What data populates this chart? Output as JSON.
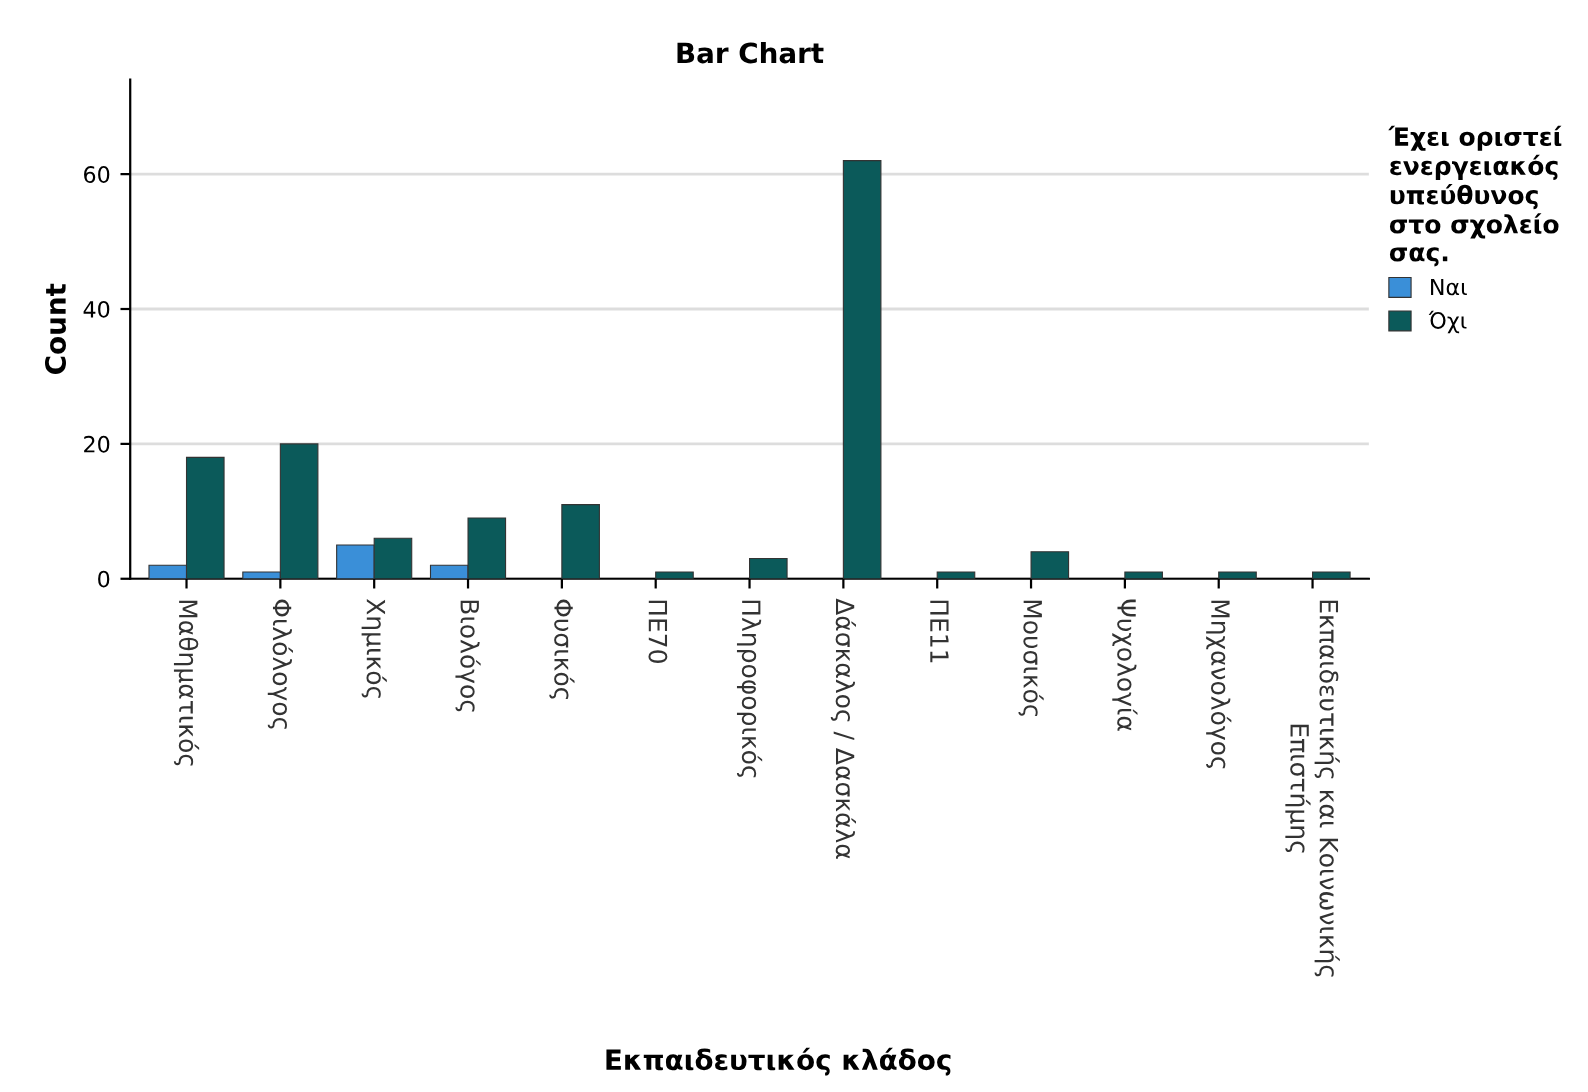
{
  "chart_data": {
    "type": "bar",
    "title": "Bar Chart",
    "xlabel": "Εκπαιδευτικός κλάδος",
    "ylabel": "Count",
    "legend_title": "Έχει οριστεί\nενεργειακός\nυπεύθυνος\nστο σχολείο\nσας.",
    "categories": [
      "Μαθηματικός",
      "Φιλόλογος",
      "Χημικός",
      "Βιολόγος",
      "Φυσικός",
      "ΠΕ70",
      "Πληροφορικός",
      "Δάσκαλος / Δασκάλα",
      "ΠΕ11",
      "Μουσικός",
      "Ψυχολογία",
      "Μηχανολόγος",
      "Εκπαιδευτικής και Κοινωνικής\nΕπιστήμης"
    ],
    "series": [
      {
        "name": "Ναι",
        "color": "#3a8fd8",
        "values": [
          2,
          1,
          5,
          2,
          null,
          null,
          null,
          null,
          null,
          null,
          null,
          null,
          null
        ]
      },
      {
        "name": "Όχι",
        "color": "#0b5a5a",
        "values": [
          18,
          20,
          6,
          9,
          11,
          1,
          3,
          62,
          1,
          4,
          1,
          1,
          1
        ]
      }
    ],
    "ylim": [
      0,
      74
    ],
    "yticks": [
      0,
      20,
      40,
      60
    ],
    "grid": "y",
    "legend": "right"
  }
}
